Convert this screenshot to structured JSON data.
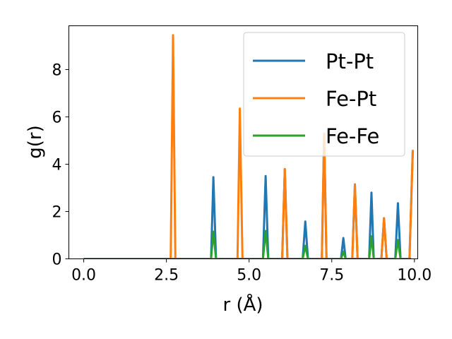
{
  "chart_data": {
    "type": "line",
    "title": "",
    "xlabel": "r (Å)",
    "ylabel": "g(r)",
    "xlim": [
      -0.45,
      10.1
    ],
    "ylim": [
      0,
      9.85
    ],
    "xticks": [
      {
        "value": 0.0,
        "label": "0.0"
      },
      {
        "value": 2.5,
        "label": "2.5"
      },
      {
        "value": 5.0,
        "label": "5.0"
      },
      {
        "value": 7.5,
        "label": "7.5"
      },
      {
        "value": 10.0,
        "label": "10.0"
      }
    ],
    "yticks": [
      {
        "value": 0,
        "label": "0"
      },
      {
        "value": 2,
        "label": "2"
      },
      {
        "value": 4,
        "label": "4"
      },
      {
        "value": 6,
        "label": "6"
      },
      {
        "value": 8,
        "label": "8"
      }
    ],
    "grid": false,
    "legend_position": "top-right",
    "series": [
      {
        "name": "Pt-Pt",
        "color": "#1f77b4",
        "points": [
          [
            0,
            0
          ],
          [
            3.85,
            0
          ],
          [
            3.92,
            3.45
          ],
          [
            4.0,
            0
          ],
          [
            5.42,
            0
          ],
          [
            5.5,
            3.5
          ],
          [
            5.58,
            0
          ],
          [
            6.0,
            0
          ],
          [
            6.08,
            3.78
          ],
          [
            6.16,
            0
          ],
          [
            6.62,
            0
          ],
          [
            6.7,
            1.58
          ],
          [
            6.78,
            0
          ],
          [
            7.2,
            0
          ],
          [
            7.27,
            5.3
          ],
          [
            7.34,
            0
          ],
          [
            7.78,
            0
          ],
          [
            7.85,
            0.88
          ],
          [
            7.92,
            0
          ],
          [
            8.12,
            0
          ],
          [
            8.2,
            3.15
          ],
          [
            8.28,
            0
          ],
          [
            8.63,
            0
          ],
          [
            8.7,
            2.8
          ],
          [
            8.77,
            0
          ],
          [
            9.0,
            0
          ],
          [
            9.08,
            1.72
          ],
          [
            9.16,
            0
          ],
          [
            9.42,
            0
          ],
          [
            9.5,
            2.35
          ],
          [
            9.58,
            0
          ],
          [
            9.85,
            0
          ],
          [
            9.95,
            4.6
          ]
        ]
      },
      {
        "name": "Fe-Pt",
        "color": "#ff7f0e",
        "points": [
          [
            0,
            0
          ],
          [
            2.63,
            0
          ],
          [
            2.7,
            9.45
          ],
          [
            2.77,
            0
          ],
          [
            4.65,
            0
          ],
          [
            4.72,
            6.35
          ],
          [
            4.8,
            0
          ],
          [
            6.0,
            0
          ],
          [
            6.08,
            3.8
          ],
          [
            6.16,
            0
          ],
          [
            7.2,
            0
          ],
          [
            7.27,
            5.3
          ],
          [
            7.34,
            0
          ],
          [
            8.12,
            0
          ],
          [
            8.2,
            3.15
          ],
          [
            8.28,
            0
          ],
          [
            9.0,
            0
          ],
          [
            9.08,
            1.72
          ],
          [
            9.16,
            0
          ],
          [
            9.85,
            0
          ],
          [
            9.95,
            4.6
          ]
        ]
      },
      {
        "name": "Fe-Fe",
        "color": "#2ca02c",
        "points": [
          [
            0,
            0
          ],
          [
            3.85,
            0
          ],
          [
            3.92,
            1.15
          ],
          [
            4.0,
            0
          ],
          [
            5.42,
            0
          ],
          [
            5.5,
            1.18
          ],
          [
            5.58,
            0
          ],
          [
            6.62,
            0
          ],
          [
            6.7,
            0.55
          ],
          [
            6.78,
            0
          ],
          [
            7.78,
            0
          ],
          [
            7.85,
            0.3
          ],
          [
            7.92,
            0
          ],
          [
            8.63,
            0
          ],
          [
            8.7,
            0.95
          ],
          [
            8.77,
            0
          ],
          [
            9.42,
            0
          ],
          [
            9.5,
            0.8
          ],
          [
            9.58,
            0
          ],
          [
            9.9,
            0
          ]
        ]
      }
    ]
  }
}
